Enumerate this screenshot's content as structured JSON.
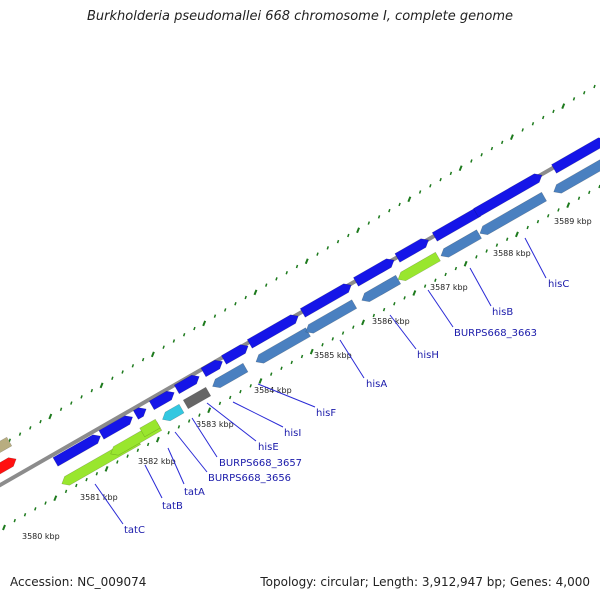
{
  "title": "Burkholderia pseudomallei 668 chromosome I, complete genome",
  "footer": {
    "accession": "Accession: NC_009074",
    "summary": "Topology: circular; Length: 3,912,947 bp; Genes: 4,000"
  },
  "colors": {
    "backbone": "#8c8c8c",
    "forward_gene": "#1515e8",
    "reverse_gene": "#4a80c0",
    "highlight_gene": "#99e62e",
    "cyan_gene": "#33c7e0",
    "gray_gene": "#666666",
    "tick": "#1d7a1d",
    "label_line": "#2a2ad6"
  },
  "kbp_ticks": [
    "3580 kbp",
    "3581 kbp",
    "3582 kbp",
    "3583 kbp",
    "3584 kbp",
    "3585 kbp",
    "3586 kbp",
    "3587 kbp",
    "3588 kbp",
    "3589 kbp"
  ],
  "gene_labels": [
    "tatC",
    "tatB",
    "tatA",
    "BURPS668_3656",
    "BURPS668_3657",
    "hisE",
    "hisI",
    "hisF",
    "hisA",
    "hisH",
    "BURPS668_3663",
    "hisB",
    "hisC"
  ]
}
